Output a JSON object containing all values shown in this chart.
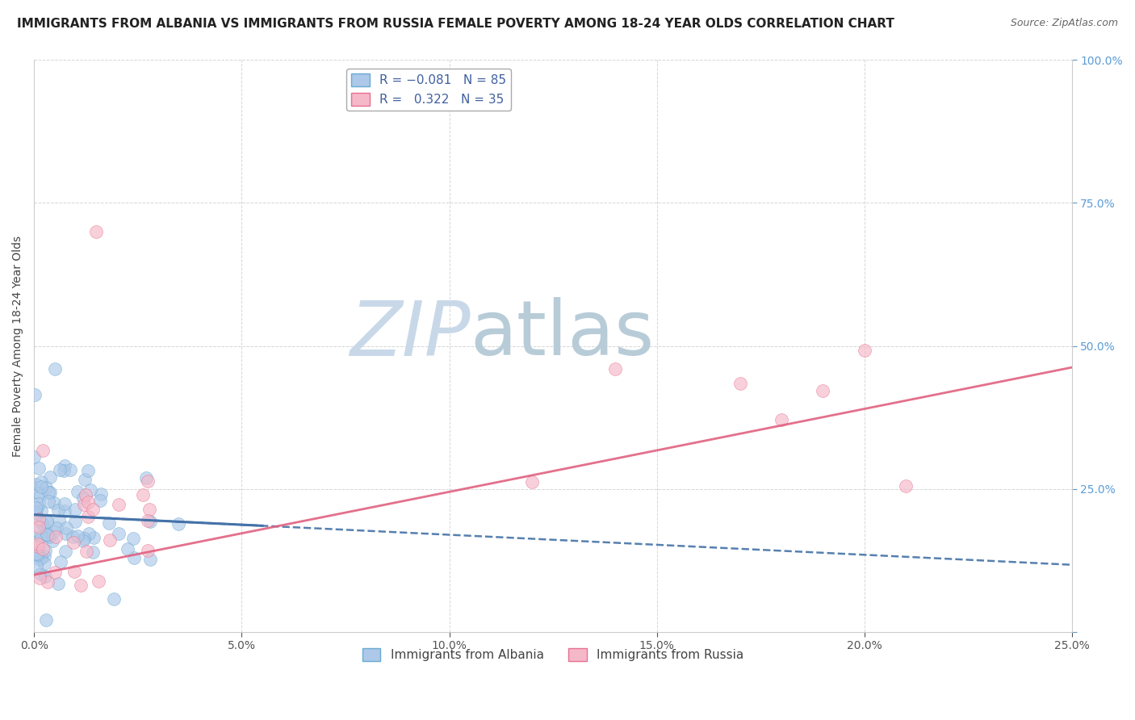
{
  "title": "IMMIGRANTS FROM ALBANIA VS IMMIGRANTS FROM RUSSIA FEMALE POVERTY AMONG 18-24 YEAR OLDS CORRELATION CHART",
  "source": "Source: ZipAtlas.com",
  "ylabel": "Female Poverty Among 18-24 Year Olds",
  "legend_bottom": [
    "Immigrants from Albania",
    "Immigrants from Russia"
  ],
  "albania": {
    "R": -0.081,
    "N": 85,
    "color": "#adc8e8",
    "edge_color": "#6aaad4",
    "line_color": "#4472a8",
    "line_style": "--"
  },
  "russia": {
    "R": 0.322,
    "N": 35,
    "color": "#f5b8c8",
    "edge_color": "#e87090",
    "line_color": "#e06080",
    "line_style": "-"
  },
  "xlim": [
    0.0,
    0.25
  ],
  "ylim": [
    0.0,
    1.0
  ],
  "x_ticks": [
    0.0,
    0.05,
    0.1,
    0.15,
    0.2,
    0.25
  ],
  "x_tick_labels": [
    "0.0%",
    "5.0%",
    "10.0%",
    "15.0%",
    "20.0%",
    "25.0%"
  ],
  "y_ticks": [
    0.0,
    0.25,
    0.5,
    0.75,
    1.0
  ],
  "y_tick_labels_right": [
    "",
    "25.0%",
    "50.0%",
    "75.0%",
    "100.0%"
  ],
  "watermark_zip": "ZIP",
  "watermark_atlas": "atlas",
  "watermark_color_zip": "#c8d8e8",
  "watermark_color_atlas": "#c8d8e8",
  "background_color": "#ffffff",
  "grid_color": "#cccccc",
  "title_fontsize": 11,
  "axis_label_fontsize": 10,
  "tick_fontsize": 10,
  "legend_fontsize": 11,
  "source_fontsize": 9,
  "right_tick_color": "#5b9bd5",
  "scatter_size": 130,
  "scatter_alpha": 0.65,
  "scatter_linewidth": 0.5
}
